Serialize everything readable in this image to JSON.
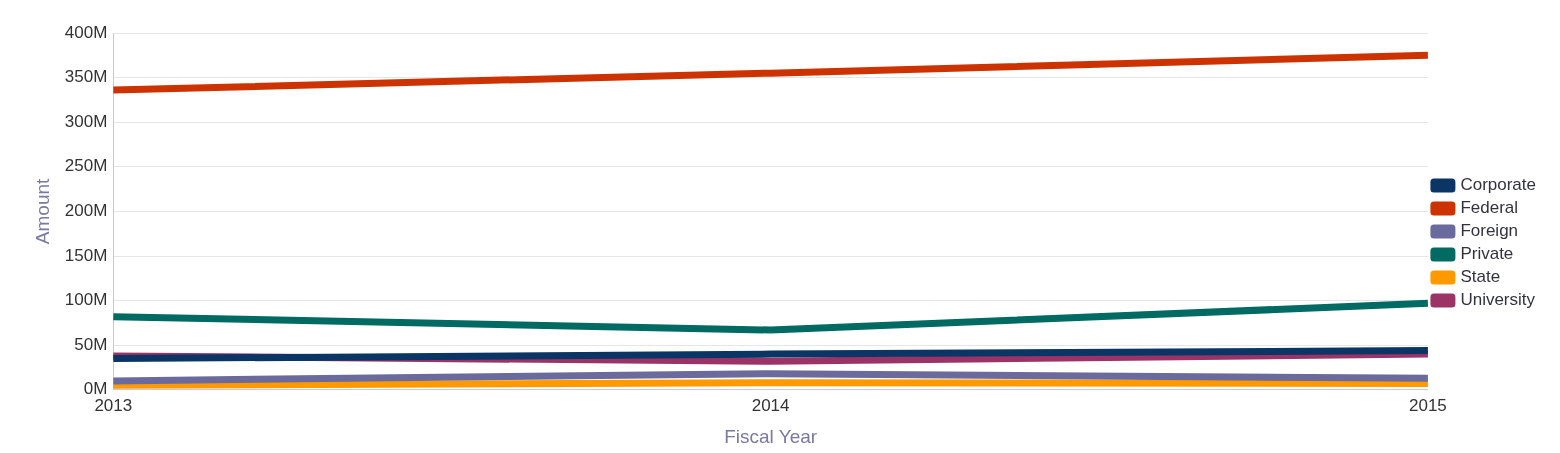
{
  "chart_data": {
    "type": "line",
    "xlabel": "Fiscal Year",
    "ylabel": "Amount",
    "categories": [
      "2013",
      "2014",
      "2015"
    ],
    "series": [
      {
        "name": "Corporate",
        "color": "#0a3564",
        "values": [
          35,
          40,
          44
        ]
      },
      {
        "name": "Federal",
        "color": "#cc3300",
        "values": [
          336,
          355,
          375
        ]
      },
      {
        "name": "Foreign",
        "color": "#6b6a9c",
        "values": [
          10,
          18,
          13
        ]
      },
      {
        "name": "Private",
        "color": "#006a63",
        "values": [
          82,
          67,
          97
        ]
      },
      {
        "name": "State",
        "color": "#ff9900",
        "values": [
          5,
          8,
          7
        ]
      },
      {
        "name": "University",
        "color": "#9b3366",
        "values": [
          38,
          32,
          40
        ]
      }
    ],
    "ylim": [
      0,
      400
    ],
    "yticks": [
      {
        "value": 0,
        "label": "0M"
      },
      {
        "value": 50,
        "label": "50M"
      },
      {
        "value": 100,
        "label": "100M"
      },
      {
        "value": 150,
        "label": "150M"
      },
      {
        "value": 200,
        "label": "200M"
      },
      {
        "value": 250,
        "label": "250M"
      },
      {
        "value": 300,
        "label": "300M"
      },
      {
        "value": 350,
        "label": "350M"
      },
      {
        "value": 400,
        "label": "400M"
      }
    ],
    "grid": "y",
    "legend": "right",
    "marker": "none",
    "line_style": "solid"
  }
}
